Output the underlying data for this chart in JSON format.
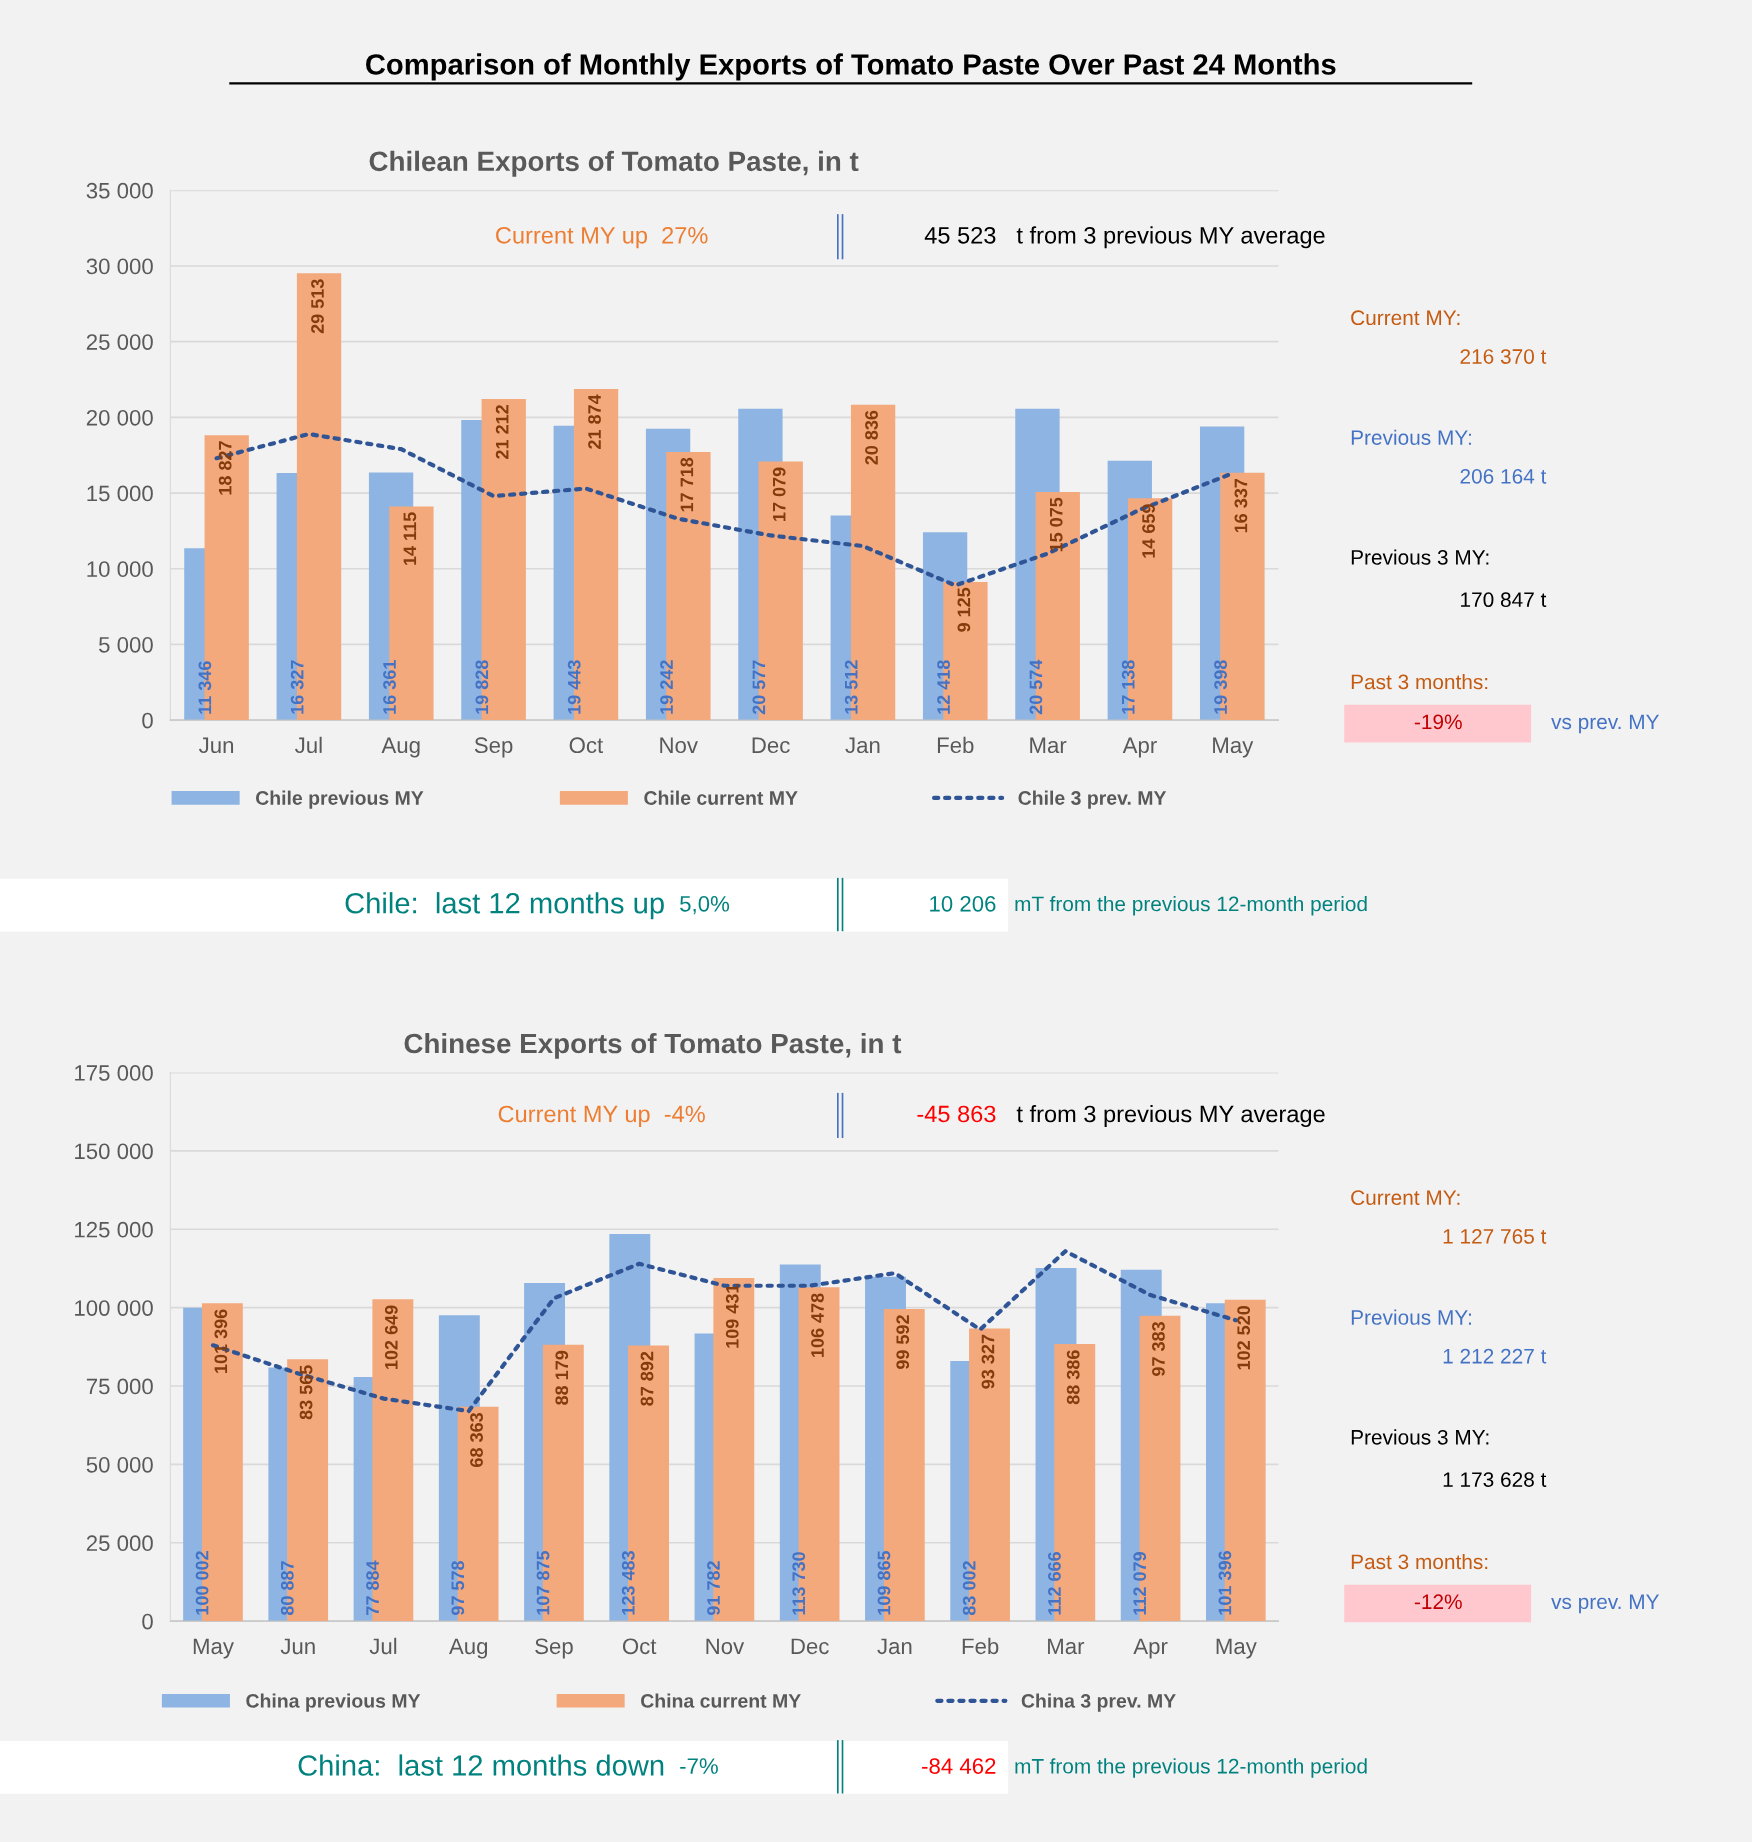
{
  "chart_data": [
    {
      "type": "bar",
      "title": "Chilean Exports of Tomato Paste, in t",
      "categories": [
        "Jun",
        "Jul",
        "Aug",
        "Sep",
        "Oct",
        "Nov",
        "Dec",
        "Jan",
        "Feb",
        "Mar",
        "Apr",
        "May"
      ],
      "series": [
        {
          "name": "Chile previous MY",
          "color": "#8db4e2",
          "values": [
            11346,
            16327,
            16361,
            19828,
            19443,
            19242,
            20577,
            13512,
            12418,
            20574,
            17138,
            19398
          ],
          "value_labels": [
            "11 346",
            "16 327",
            "16 361",
            "19 828",
            "19 443",
            "19 242",
            "20 577",
            "13 512",
            "12 418",
            "20 574",
            "17 138",
            "19 398"
          ]
        },
        {
          "name": "Chile current MY",
          "color": "#f4a97c",
          "values": [
            18827,
            29513,
            14115,
            21212,
            21874,
            17718,
            17079,
            20836,
            9125,
            15075,
            14659,
            16337
          ],
          "value_labels": [
            "18 827",
            "29 513",
            "14 115",
            "21 212",
            "21 874",
            "17 718",
            "17 079",
            "20 836",
            "9 125",
            "15 075",
            "14 659",
            "16 337"
          ]
        },
        {
          "name": "Chile 3 prev. MY",
          "type": "line",
          "color": "#2f5597",
          "line_style": "dotted",
          "values": [
            17300,
            18900,
            17900,
            14800,
            15300,
            13300,
            12200,
            11500,
            8900,
            11000,
            13900,
            16300
          ]
        }
      ],
      "ylim": [
        0,
        35000
      ],
      "yticks": [
        0,
        {
          "value": 5000,
          "label": "5 000"
        },
        {
          "value": 10000,
          "label": "10 000"
        },
        {
          "value": 15000,
          "label": "15 000"
        },
        {
          "value": 20000,
          "label": "20 000"
        },
        {
          "value": 25000,
          "label": "25 000"
        },
        {
          "value": 30000,
          "label": "30 000"
        },
        {
          "value": 35000,
          "label": "35 000"
        }
      ],
      "grid": "y",
      "legend": "bottom",
      "annotations": [
        "Comparison of Monthly Exports of Tomato Paste Over Past 24 Months",
        "Current MY up  27%",
        "45 523",
        "t from 3 previous MY average",
        "Current MY:",
        "216 370 t",
        "Previous MY:",
        "206 164 t",
        "Previous 3 MY:",
        "170 847 t",
        "Past 3 months:",
        "-19%",
        "vs prev. MY",
        "Chile:  last 12 months up",
        "5,0%",
        "10 206",
        "mT from the previous 12-month period"
      ]
    },
    {
      "type": "bar",
      "title": "Chinese Exports of Tomato Paste, in t",
      "categories": [
        "May",
        "Jun",
        "Jul",
        "Aug",
        "Sep",
        "Oct",
        "Nov",
        "Dec",
        "Jan",
        "Feb",
        "Mar",
        "Apr",
        "May"
      ],
      "series": [
        {
          "name": "China previous MY",
          "color": "#8db4e2",
          "values": [
            100002,
            80887,
            77884,
            97578,
            107875,
            123483,
            91782,
            113730,
            109865,
            83002,
            112666,
            112079,
            101396
          ],
          "value_labels": [
            "100 002",
            "80 887",
            "77 884",
            "97 578",
            "107 875",
            "123 483",
            "91 782",
            "113 730",
            "109 865",
            "83 002",
            "112 666",
            "112 079",
            "101 396"
          ]
        },
        {
          "name": "China current MY",
          "color": "#f4a97c",
          "values": [
            101396,
            83565,
            102649,
            68363,
            88179,
            87892,
            109431,
            106478,
            99592,
            93327,
            88386,
            97383,
            102520
          ],
          "value_labels": [
            "101 396",
            "83 565",
            "102 649",
            "68 363",
            "88 179",
            "87 892",
            "109 431",
            "106 478",
            "99 592",
            "93 327",
            "88 386",
            "97 383",
            "102 520"
          ]
        },
        {
          "name": "China 3 prev. MY",
          "type": "line",
          "color": "#2f5597",
          "line_style": "dotted",
          "values": [
            88000,
            79000,
            71000,
            67000,
            103000,
            114000,
            107000,
            107000,
            111000,
            93000,
            118000,
            104000,
            96000
          ]
        }
      ],
      "ylim": [
        0,
        175000
      ],
      "yticks": [
        0,
        {
          "value": 25000,
          "label": "25 000"
        },
        {
          "value": 50000,
          "label": "50 000"
        },
        {
          "value": 75000,
          "label": "75 000"
        },
        {
          "value": 100000,
          "label": "100 000"
        },
        {
          "value": 125000,
          "label": "125 000"
        },
        {
          "value": 150000,
          "label": "150 000"
        },
        {
          "value": 175000,
          "label": "175 000"
        }
      ],
      "grid": "y",
      "legend": "bottom",
      "annotations": [
        "Current MY up  -4%",
        "-45 863",
        "t from 3 previous MY average",
        "Current MY:",
        "1 127 765 t",
        "Previous MY:",
        "1 212 227 t",
        "Previous 3 MY:",
        "1 173 628 t",
        "Past 3 months:",
        "-12%",
        "vs prev. MY",
        "China:  last 12 months down",
        "-7%",
        "-84 462",
        "mT from the previous 12-month period"
      ]
    }
  ]
}
